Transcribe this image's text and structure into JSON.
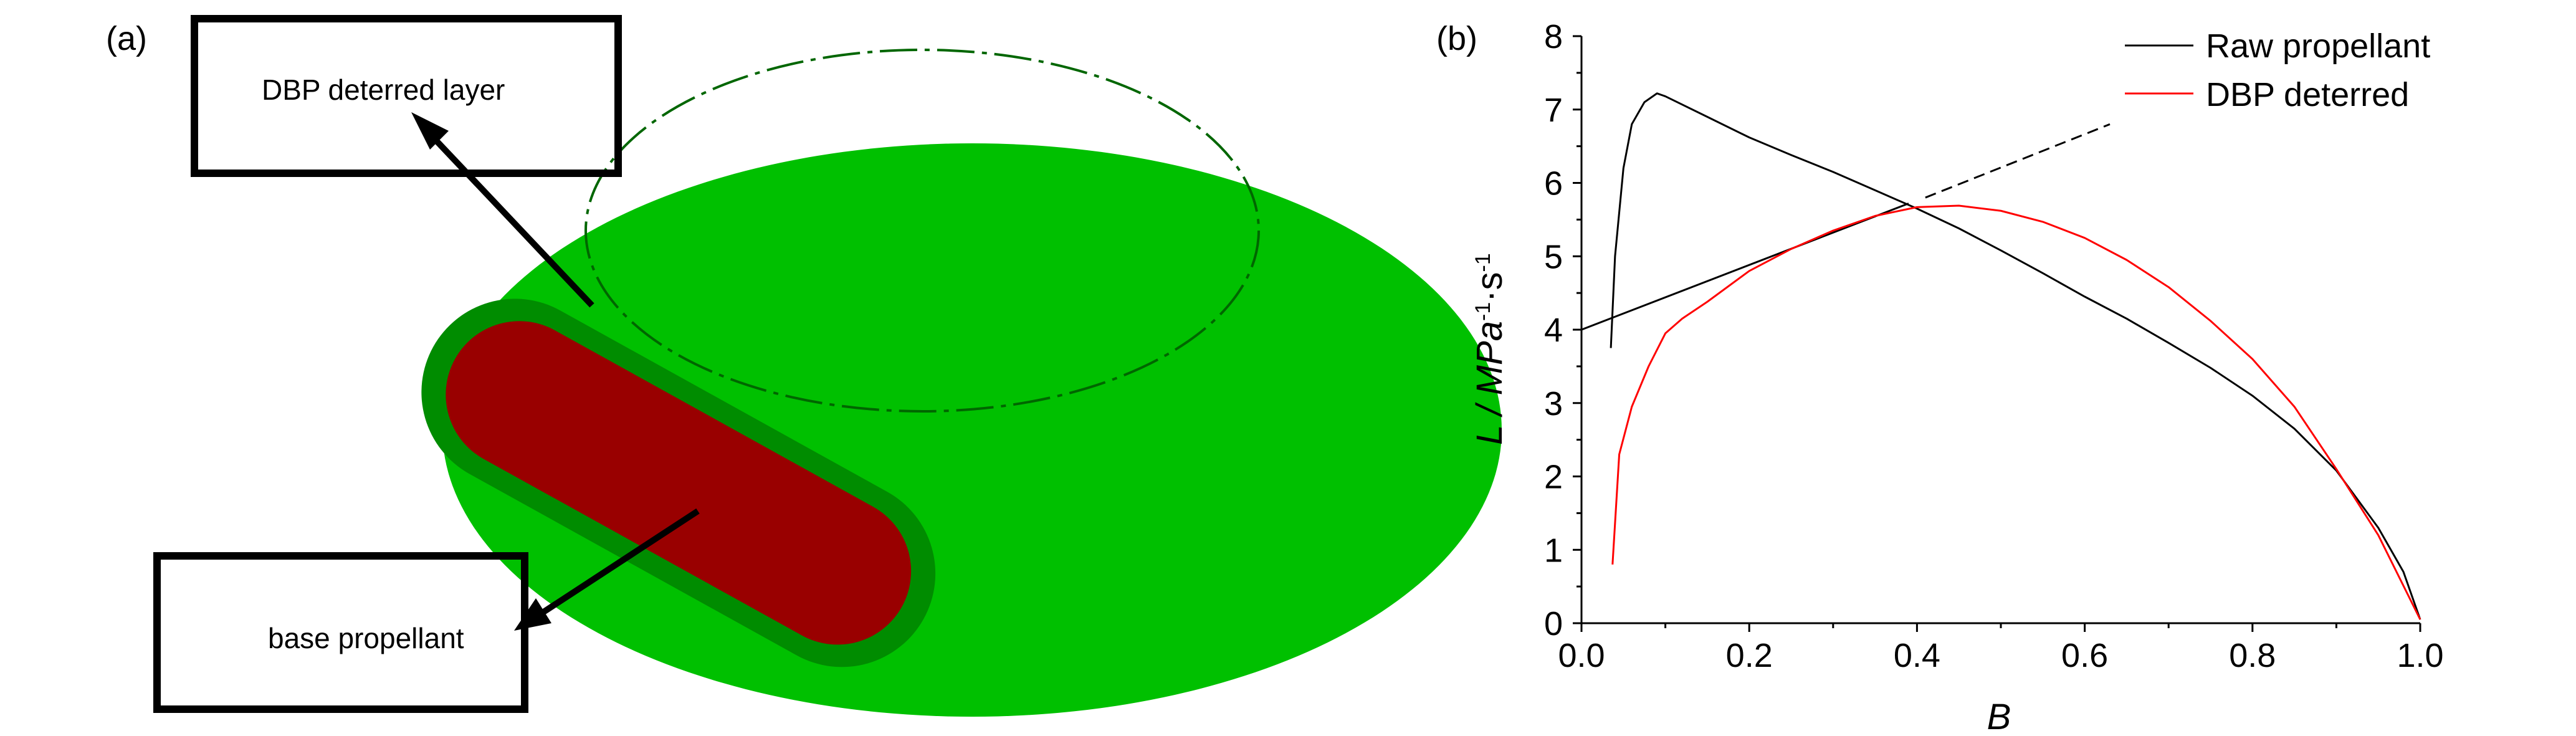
{
  "panel_a": {
    "label": "(a)",
    "callouts": [
      "DBP deterred layer",
      "base propellant"
    ],
    "colors": {
      "layer": "#00c400",
      "base": "#990000"
    }
  },
  "panel_b": {
    "label": "(b)"
  },
  "chart_data": {
    "type": "line",
    "title": "",
    "xlabel": "B",
    "ylabel_main": "L / MPa",
    "ylabel_sup1": "-1",
    "ylabel_mid": "·s",
    "ylabel_sup2": "-1",
    "xlim": [
      0,
      1.0
    ],
    "ylim": [
      0,
      8
    ],
    "xticks": [
      "0.0",
      "0.2",
      "0.4",
      "0.6",
      "0.8",
      "1.0"
    ],
    "yticks": [
      "0",
      "1",
      "2",
      "3",
      "4",
      "5",
      "6",
      "7",
      "8"
    ],
    "grid": false,
    "legend_position": "top-right",
    "series": [
      {
        "name": "Raw propellant",
        "color": "#000000",
        "x": [
          0.035,
          0.04,
          0.05,
          0.06,
          0.075,
          0.09,
          0.1,
          0.15,
          0.2,
          0.25,
          0.3,
          0.35,
          0.4,
          0.45,
          0.5,
          0.55,
          0.6,
          0.65,
          0.7,
          0.75,
          0.8,
          0.85,
          0.9,
          0.95,
          0.98,
          1.0
        ],
        "y": [
          3.75,
          5.0,
          6.2,
          6.8,
          7.1,
          7.22,
          7.18,
          6.9,
          6.62,
          6.38,
          6.15,
          5.9,
          5.65,
          5.38,
          5.08,
          4.77,
          4.45,
          4.15,
          3.82,
          3.48,
          3.1,
          2.65,
          2.08,
          1.3,
          0.7,
          0.05
        ]
      },
      {
        "name": "DBP deterred",
        "color": "#ff0000",
        "x": [
          0.037,
          0.045,
          0.06,
          0.08,
          0.1,
          0.12,
          0.15,
          0.2,
          0.25,
          0.3,
          0.35,
          0.4,
          0.45,
          0.5,
          0.55,
          0.6,
          0.65,
          0.7,
          0.75,
          0.8,
          0.85,
          0.9,
          0.95,
          1.0
        ],
        "y": [
          0.8,
          2.3,
          2.95,
          3.5,
          3.95,
          4.15,
          4.38,
          4.8,
          5.1,
          5.35,
          5.55,
          5.67,
          5.69,
          5.62,
          5.47,
          5.25,
          4.95,
          4.58,
          4.12,
          3.6,
          2.95,
          2.1,
          1.2,
          0.05
        ]
      }
    ],
    "annotations": [
      {
        "type": "tangent-solid",
        "x": [
          0.0,
          0.39
        ],
        "y": [
          4.0,
          5.72
        ]
      },
      {
        "type": "tangent-dashed",
        "x": [
          0.41,
          0.63
        ],
        "y": [
          5.8,
          6.8
        ]
      }
    ]
  }
}
